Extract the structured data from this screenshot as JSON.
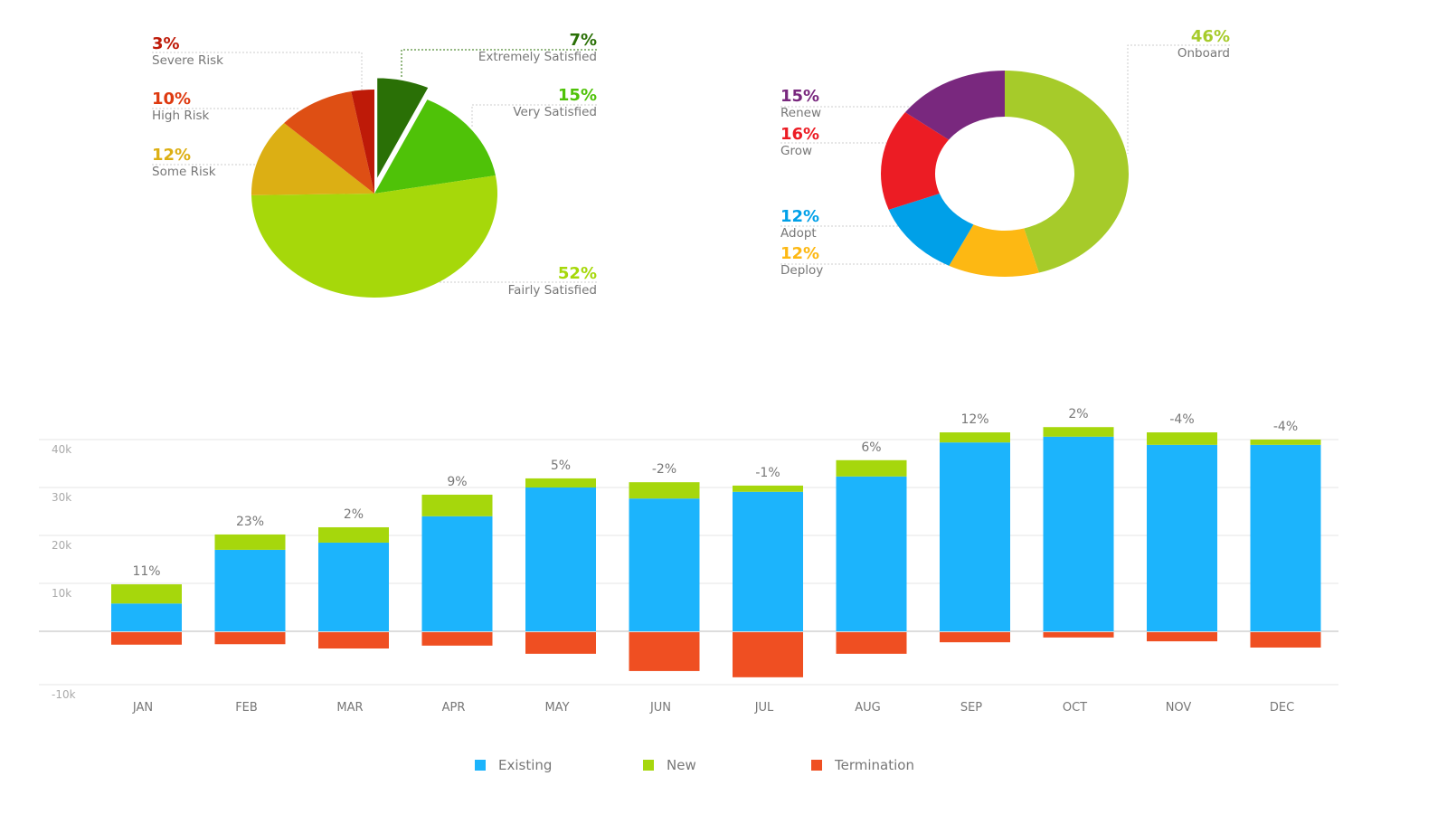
{
  "chart_data": [
    {
      "type": "pie",
      "slices": [
        {
          "label": "Extremely Satisfied",
          "value": 7,
          "pct_label": "7%",
          "color": "#2a7006",
          "exploded": true
        },
        {
          "label": "Very Satisfied",
          "value": 15,
          "pct_label": "15%",
          "color": "#4fc208"
        },
        {
          "label": "Fairly Satisfied",
          "value": 52,
          "pct_label": "52%",
          "color": "#a6d80a"
        },
        {
          "label": "Some Risk",
          "value": 12,
          "pct_label": "12%",
          "color": "#dcaf14"
        },
        {
          "label": "High Risk",
          "value": 10,
          "pct_label": "10%",
          "color": "#de4f14"
        },
        {
          "label": "Severe Risk",
          "value": 3,
          "pct_label": "3%",
          "color": "#be1a08"
        }
      ]
    },
    {
      "type": "pie",
      "donut": true,
      "slices": [
        {
          "label": "Onboard",
          "value": 46,
          "pct_label": "46%",
          "color": "#a6cb2a"
        },
        {
          "label": "Deploy",
          "value": 12,
          "pct_label": "12%",
          "color": "#fdb813"
        },
        {
          "label": "Adopt",
          "value": 12,
          "pct_label": "12%",
          "color": "#00a0e8"
        },
        {
          "label": "Grow",
          "value": 16,
          "pct_label": "16%",
          "color": "#ec1c24"
        },
        {
          "label": "Renew",
          "value": 15,
          "pct_label": "15%",
          "color": "#79287e"
        }
      ]
    },
    {
      "type": "bar",
      "stacked": true,
      "categories": [
        "JAN",
        "FEB",
        "MAR",
        "APR",
        "MAY",
        "JUN",
        "JUL",
        "AUG",
        "SEP",
        "OCT",
        "NOV",
        "DEC"
      ],
      "series": [
        {
          "name": "Existing",
          "color": "#1cb4fc",
          "values": [
            5.8,
            17,
            18.5,
            24,
            30,
            27.7,
            29.1,
            32.3,
            39.4,
            40.6,
            38.9,
            38.9
          ]
        },
        {
          "name": "New",
          "color": "#a6d70c",
          "values": [
            4,
            3.2,
            3.2,
            4.5,
            1.9,
            3.4,
            1.3,
            3.4,
            2.1,
            2,
            2.6,
            1.1
          ]
        },
        {
          "name": "Termination",
          "color": "#ef4f22",
          "values": [
            -2.6,
            -2.5,
            -3.4,
            -2.8,
            -4.5,
            -8.1,
            -9.4,
            -4.5,
            -2.1,
            -1.1,
            -1.9,
            -3.2
          ]
        }
      ],
      "data_labels": [
        "11%",
        "23%",
        "2%",
        "9%",
        "5%",
        "-2%",
        "-1%",
        "6%",
        "12%",
        "2%",
        "-4%",
        "-4%"
      ],
      "yticks": [
        "40k",
        "30k",
        "20k",
        "10k",
        "-10k"
      ],
      "ytick_values": [
        40,
        30,
        20,
        10,
        -10
      ],
      "ylim": [
        -11,
        43
      ],
      "grid": true,
      "legend_position": "bottom"
    }
  ]
}
